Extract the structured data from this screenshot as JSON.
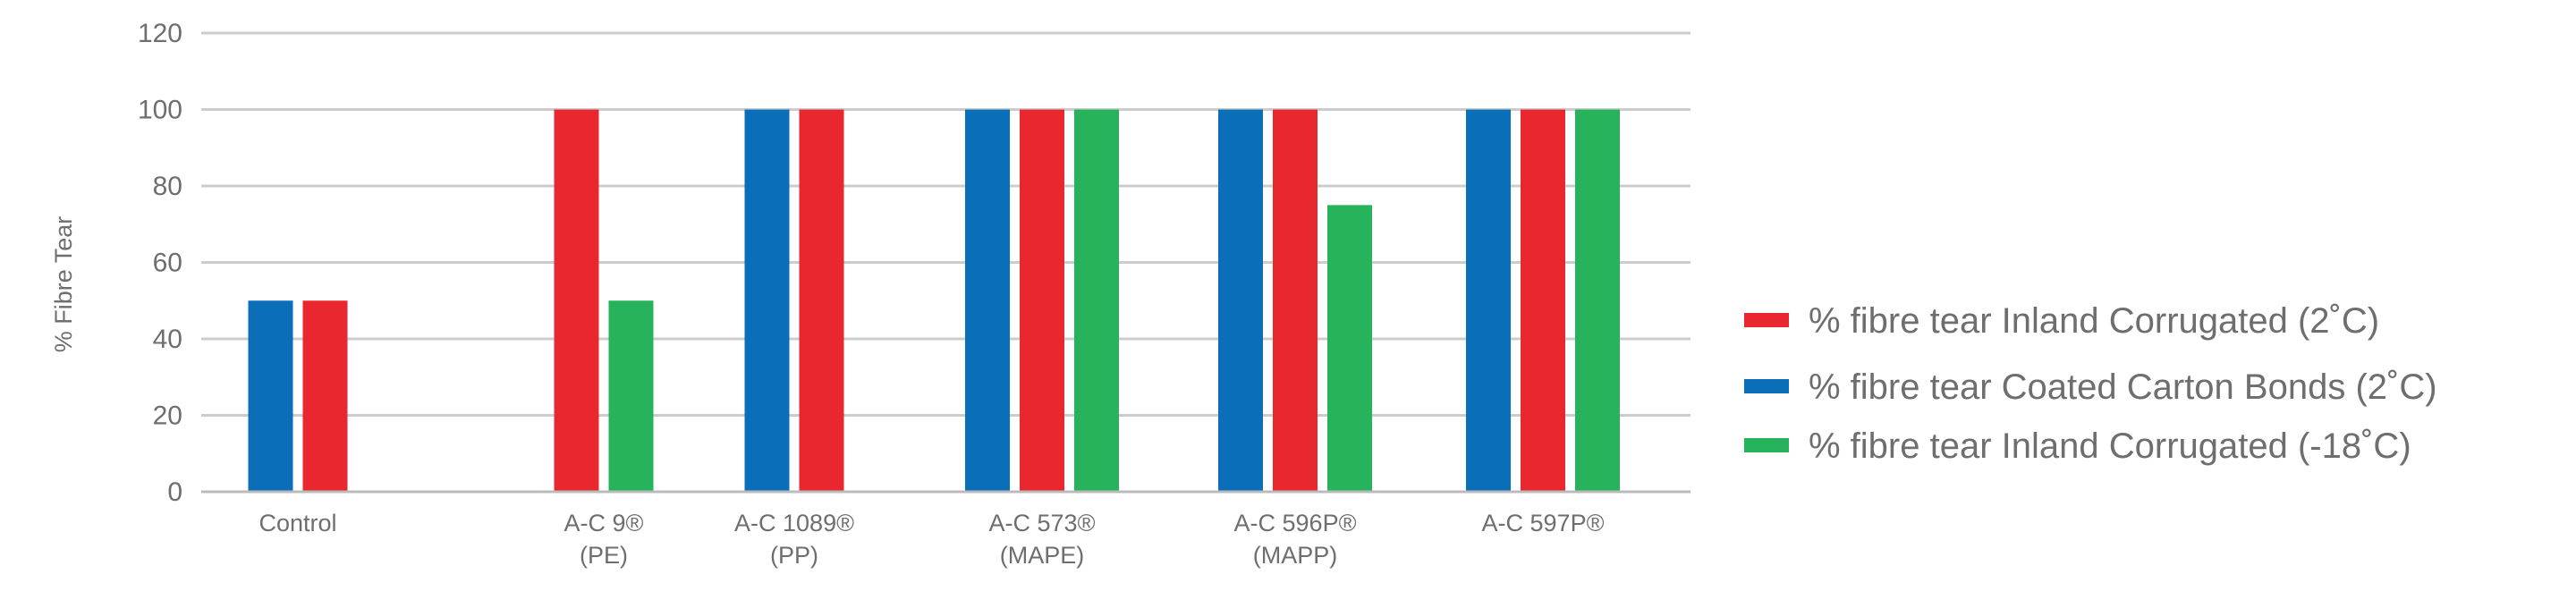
{
  "chart_data": {
    "type": "bar",
    "title": "",
    "xlabel": "",
    "ylabel": "% Fibre Tear",
    "ylim": [
      0,
      120
    ],
    "yticks": [
      0,
      20,
      40,
      60,
      80,
      100,
      120
    ],
    "ytick_labels": [
      "0",
      "20",
      "40",
      "60",
      "80",
      "100",
      "120"
    ],
    "grid": true,
    "legend_position": "right",
    "categories": [
      [
        "Control"
      ],
      [
        "A-C 9®",
        "(PE)"
      ],
      [
        "A-C 1089®",
        "(PP)"
      ],
      [
        "A-C 573®",
        "(MAPE)"
      ],
      [
        "A-C 596P®",
        "(MAPP)"
      ],
      [
        "A-C 597P®"
      ]
    ],
    "series": [
      {
        "name": "% fibre tear Coated Carton Bonds (2˚C)",
        "color": "#0a6eb9",
        "values": [
          50,
          null,
          100,
          100,
          100,
          100
        ]
      },
      {
        "name": "% fibre tear Inland Corrugated (2˚C)",
        "color": "#e8282e",
        "values": [
          50,
          100,
          100,
          100,
          100,
          100
        ]
      },
      {
        "name": "% fibre tear Inland Corrugated (-18˚C)",
        "color": "#27b35c",
        "values": [
          null,
          50,
          null,
          100,
          75,
          100
        ]
      }
    ],
    "legend_order": [
      1,
      0,
      2
    ]
  }
}
